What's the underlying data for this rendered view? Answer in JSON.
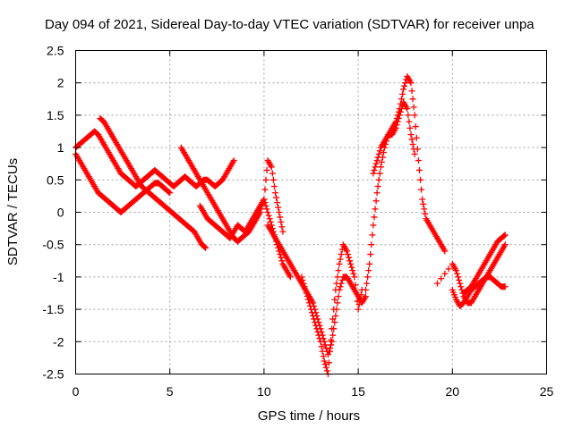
{
  "chart_data": {
    "type": "scatter",
    "title": "Day 094 of 2021, Sidereal Day-to-day VTEC variation (SDTVAR) for receiver unpa",
    "xlabel": "GPS time / hours",
    "ylabel": "SDTVAR / TECUs",
    "xlim": [
      0,
      25
    ],
    "ylim": [
      -2.5,
      2.5
    ],
    "xticks": [
      "0",
      "5",
      "10",
      "15",
      "20",
      "25"
    ],
    "yticks": [
      "-2.5",
      "-2",
      "-1.5",
      "-1",
      "-0.5",
      "0",
      "0.5",
      "1",
      "1.5",
      "2",
      "2.5"
    ],
    "grid": true,
    "legend": "none",
    "marker": "+",
    "color": "#ff0000",
    "series": [
      {
        "x": [
          0.0,
          0.2,
          0.4,
          0.6,
          0.8,
          1.0,
          1.2,
          1.4,
          1.6,
          1.8,
          2.0,
          2.2,
          2.4,
          2.6,
          2.8,
          3.0,
          3.2,
          3.4,
          3.6,
          3.8,
          4.0,
          4.2,
          4.4,
          4.6,
          4.8,
          5.0,
          5.2,
          5.4,
          5.6,
          5.8,
          6.0,
          6.2,
          6.4,
          6.6,
          6.8,
          7.0,
          7.2,
          7.4,
          7.6,
          7.8,
          8.0,
          8.2,
          8.4
        ],
        "y": [
          1.0,
          1.05,
          1.1,
          1.15,
          1.2,
          1.25,
          1.2,
          1.1,
          1.0,
          0.9,
          0.8,
          0.7,
          0.6,
          0.55,
          0.5,
          0.45,
          0.4,
          0.45,
          0.5,
          0.55,
          0.6,
          0.65,
          0.6,
          0.55,
          0.5,
          0.45,
          0.4,
          0.45,
          0.5,
          0.55,
          0.5,
          0.45,
          0.4,
          0.45,
          0.5,
          0.5,
          0.45,
          0.4,
          0.45,
          0.5,
          0.6,
          0.7,
          0.8
        ]
      },
      {
        "x": [
          0.0,
          0.2,
          0.4,
          0.6,
          0.8,
          1.0,
          1.2,
          1.4,
          1.6,
          1.8,
          2.0,
          2.2,
          2.4,
          2.6,
          2.8,
          3.0,
          3.2,
          3.4,
          3.6,
          3.8,
          4.0,
          4.2,
          4.4,
          4.6,
          4.8,
          5.0
        ],
        "y": [
          0.9,
          0.8,
          0.7,
          0.6,
          0.5,
          0.4,
          0.3,
          0.25,
          0.2,
          0.15,
          0.1,
          0.05,
          0.0,
          0.05,
          0.1,
          0.15,
          0.2,
          0.25,
          0.3,
          0.35,
          0.4,
          0.45,
          0.45,
          0.4,
          0.35,
          0.3
        ]
      },
      {
        "x": [
          1.3,
          1.5,
          1.7,
          1.9,
          2.1,
          2.3,
          2.5,
          2.7,
          2.9,
          3.1,
          3.3,
          3.5,
          3.7,
          3.9,
          4.1,
          4.3,
          4.5,
          4.7,
          4.9,
          5.1,
          5.3,
          5.5,
          5.7,
          5.9,
          6.1,
          6.3,
          6.5,
          6.7,
          6.9
        ],
        "y": [
          1.45,
          1.4,
          1.3,
          1.2,
          1.1,
          1.0,
          0.9,
          0.8,
          0.7,
          0.6,
          0.5,
          0.4,
          0.35,
          0.3,
          0.25,
          0.2,
          0.15,
          0.1,
          0.05,
          0.0,
          -0.05,
          -0.1,
          -0.15,
          -0.2,
          -0.25,
          -0.3,
          -0.4,
          -0.5,
          -0.55
        ]
      },
      {
        "x": [
          5.6,
          5.8,
          6.0,
          6.2,
          6.4,
          6.6,
          6.8,
          7.0,
          7.2,
          7.4,
          7.6,
          7.8,
          8.0,
          8.2,
          8.4,
          8.6,
          8.8,
          9.0,
          9.2,
          9.4,
          9.6,
          9.8,
          10.0,
          10.2,
          10.4,
          10.6,
          10.8,
          11.0
        ],
        "y": [
          1.0,
          0.9,
          0.8,
          0.7,
          0.6,
          0.5,
          0.4,
          0.3,
          0.2,
          0.1,
          0.0,
          -0.1,
          -0.2,
          -0.3,
          -0.4,
          -0.45,
          -0.4,
          -0.35,
          -0.3,
          -0.2,
          -0.1,
          0.0,
          0.2,
          0.8,
          0.7,
          0.3,
          0.0,
          -0.3
        ]
      },
      {
        "x": [
          6.6,
          6.8,
          7.0,
          7.2,
          7.4,
          7.6,
          7.8,
          8.0,
          8.2,
          8.4,
          8.6,
          8.8,
          9.0,
          9.2,
          9.4,
          9.6,
          9.8,
          10.0,
          10.2,
          10.4,
          10.6,
          10.8,
          11.0,
          11.2,
          11.4
        ],
        "y": [
          0.1,
          0.0,
          -0.1,
          -0.15,
          -0.2,
          -0.25,
          -0.3,
          -0.35,
          -0.4,
          -0.3,
          -0.2,
          -0.25,
          -0.3,
          -0.2,
          -0.1,
          0.0,
          0.1,
          0.2,
          0.0,
          -0.2,
          -0.4,
          -0.6,
          -0.8,
          -0.9,
          -1.0
        ]
      },
      {
        "x": [
          10.2,
          10.4,
          10.6,
          10.8,
          11.0,
          11.2,
          11.4,
          11.6,
          11.8,
          12.0,
          12.2,
          12.4,
          12.6,
          12.8,
          13.0,
          13.2,
          13.4,
          13.6,
          13.8,
          14.0,
          14.2,
          14.4,
          14.6,
          14.8,
          15.0,
          15.2,
          15.4
        ],
        "y": [
          -0.2,
          -0.3,
          -0.4,
          -0.5,
          -0.6,
          -0.7,
          -0.8,
          -0.9,
          -1.0,
          -1.1,
          -1.2,
          -1.3,
          -1.4,
          -1.6,
          -1.8,
          -2.0,
          -2.2,
          -2.0,
          -1.6,
          -1.2,
          -1.0,
          -1.0,
          -1.1,
          -1.2,
          -1.3,
          -1.4,
          -1.3
        ]
      },
      {
        "x": [
          12.0,
          12.2,
          12.4,
          12.6,
          12.8,
          13.0,
          13.2,
          13.4,
          13.6,
          13.8,
          14.0,
          14.2,
          14.4,
          14.6,
          14.8,
          15.0,
          15.2
        ],
        "y": [
          -1.0,
          -1.2,
          -1.4,
          -1.6,
          -1.8,
          -2.0,
          -2.3,
          -2.5,
          -1.8,
          -1.2,
          -0.8,
          -0.5,
          -0.6,
          -0.8,
          -1.0,
          -1.5,
          -1.2
        ]
      },
      {
        "x": [
          15.4,
          15.6,
          15.8,
          16.0,
          16.2,
          16.4,
          16.6,
          16.8,
          17.0,
          17.2,
          17.4,
          17.6,
          17.8,
          18.0,
          18.2,
          18.4,
          18.6,
          18.8,
          19.0,
          19.2,
          19.4,
          19.6
        ],
        "y": [
          -1.2,
          -0.8,
          -0.2,
          0.3,
          0.7,
          1.0,
          1.2,
          1.3,
          1.4,
          1.6,
          1.9,
          2.1,
          2.0,
          1.5,
          0.8,
          0.2,
          -0.1,
          -0.2,
          -0.3,
          -0.4,
          -0.5,
          -0.6
        ]
      },
      {
        "x": [
          15.8,
          16.0,
          16.2,
          16.4,
          16.6,
          16.8,
          17.0,
          17.2,
          17.4,
          17.6,
          17.8,
          18.0
        ],
        "y": [
          0.6,
          0.8,
          1.0,
          1.1,
          1.2,
          1.2,
          1.3,
          1.5,
          1.7,
          1.6,
          1.2,
          0.9
        ]
      },
      {
        "x": [
          19.2,
          20.0,
          20.2,
          20.4,
          20.6,
          20.8,
          21.0,
          21.2,
          21.4,
          21.6,
          21.8,
          22.0,
          22.2,
          22.4,
          22.6,
          22.8
        ],
        "y": [
          -1.1,
          -0.8,
          -0.9,
          -1.1,
          -1.3,
          -1.4,
          -1.4,
          -1.3,
          -1.2,
          -1.1,
          -1.0,
          -0.9,
          -0.8,
          -0.7,
          -0.6,
          -0.5
        ]
      },
      {
        "x": [
          20.0,
          20.2,
          20.4,
          20.6,
          20.8,
          21.0,
          21.2,
          21.4,
          21.6,
          21.8,
          22.0,
          22.2,
          22.4,
          22.6,
          22.8
        ],
        "y": [
          -1.2,
          -1.35,
          -1.45,
          -1.4,
          -1.3,
          -1.2,
          -1.15,
          -1.1,
          -1.05,
          -1.0,
          -1.0,
          -1.05,
          -1.1,
          -1.15,
          -1.15
        ]
      },
      {
        "x": [
          20.6,
          20.8,
          21.0,
          21.2,
          21.4,
          21.6,
          21.8,
          22.0,
          22.2,
          22.4,
          22.6,
          22.8
        ],
        "y": [
          -1.25,
          -1.2,
          -1.15,
          -1.05,
          -0.95,
          -0.85,
          -0.75,
          -0.65,
          -0.55,
          -0.45,
          -0.4,
          -0.35
        ]
      }
    ]
  }
}
